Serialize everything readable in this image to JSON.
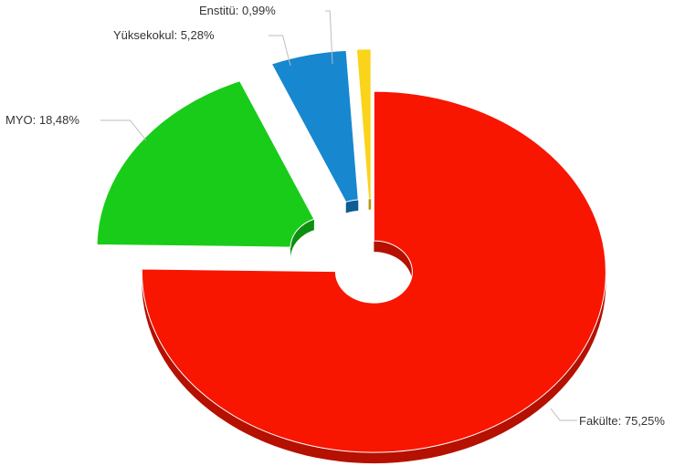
{
  "chart_data": {
    "type": "pie",
    "style": "3d-donut-exploded",
    "title": "",
    "legend": "none",
    "slices": [
      {
        "name": "Fakülte",
        "value": 75.25,
        "label": "Fakülte: 75,25%",
        "color": "#f81600",
        "side_color": "#b51000"
      },
      {
        "name": "MYO",
        "value": 18.48,
        "label": "MYO: 18,48%",
        "color": "#18cc19",
        "side_color": "#0e8f10"
      },
      {
        "name": "Yüksekokul",
        "value": 5.28,
        "label": "Yüksekokul: 5,28%",
        "color": "#1787d0",
        "side_color": "#0d5c93"
      },
      {
        "name": "Enstitü",
        "value": 0.99,
        "label": "Enstitü: 0,99%",
        "color": "#f9d41a",
        "side_color": "#b89a0a"
      }
    ]
  }
}
